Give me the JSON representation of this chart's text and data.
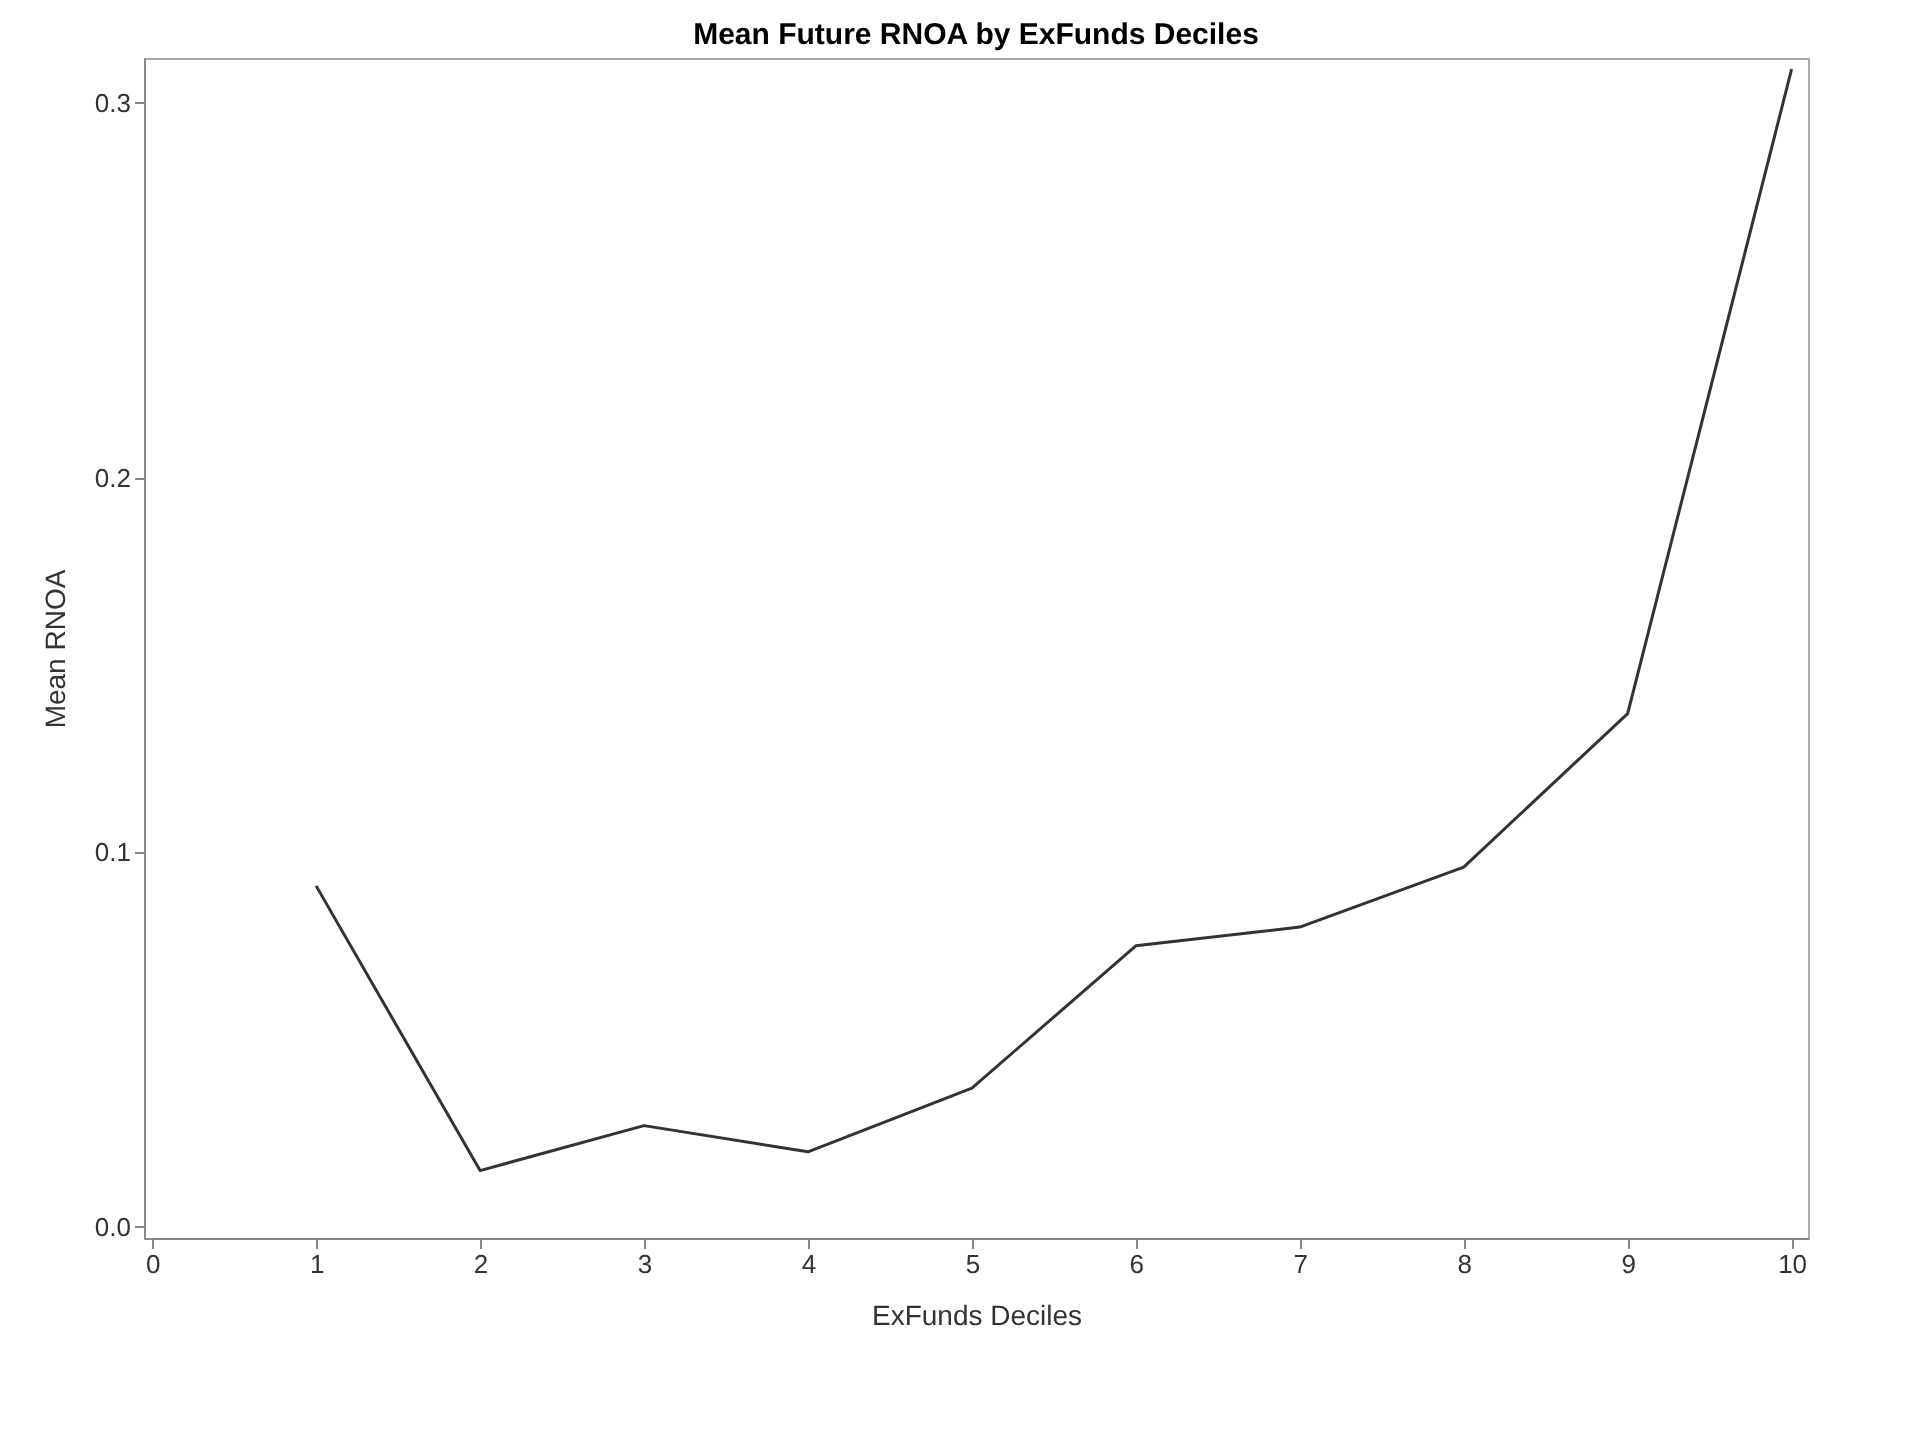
{
  "chart_data": {
    "type": "line",
    "title": "Mean Future RNOA by ExFunds Deciles",
    "xlabel": "ExFunds Deciles",
    "ylabel": "Mean RNOA",
    "x": [
      1,
      2,
      3,
      4,
      5,
      6,
      7,
      8,
      9,
      10
    ],
    "series": [
      {
        "color": "#333333",
        "values": [
          0.091,
          0.015,
          0.027,
          0.02,
          0.037,
          0.075,
          0.08,
          0.096,
          0.137,
          0.309
        ]
      }
    ],
    "xlim": [
      -0.05,
      10.1
    ],
    "xticks": [
      0,
      1,
      2,
      3,
      4,
      5,
      6,
      7,
      8,
      9,
      10
    ],
    "ylim": [
      -0.003,
      0.312
    ],
    "yticks": [
      {
        "value": 0,
        "label": "0.0"
      },
      0.1,
      0.2,
      0.3
    ],
    "grid": false,
    "marker": "none",
    "line_style": "solid"
  }
}
